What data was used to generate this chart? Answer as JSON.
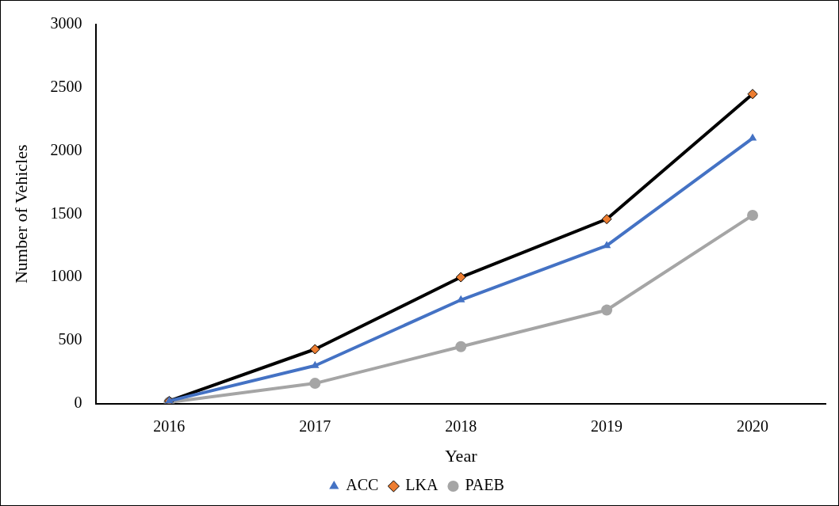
{
  "chart_data": {
    "type": "line",
    "xlabel": "Year",
    "ylabel": "Number of Vehicles",
    "categories": [
      "2016",
      "2017",
      "2018",
      "2019",
      "2020"
    ],
    "series": [
      {
        "name": "ACC",
        "color": "#4472c4",
        "marker": "triangle",
        "values": [
          20,
          300,
          820,
          1250,
          2100
        ]
      },
      {
        "name": "LKA",
        "color": "#000000",
        "marker": "diamond",
        "colors": [
          "#ed7d31",
          "#ed7d31",
          "#ed7d31",
          "#ed7d31",
          "#ed7d31"
        ],
        "values": [
          20,
          430,
          1000,
          1460,
          2450
        ]
      },
      {
        "name": "PAEB",
        "color": "#a5a5a5",
        "marker": "circle",
        "values": [
          10,
          160,
          450,
          740,
          1490
        ]
      }
    ],
    "ylim": [
      0,
      3000
    ],
    "yticks": [
      0,
      500,
      1000,
      1500,
      2000,
      2500,
      3000
    ],
    "grid": false,
    "legend": "bottom",
    "line_style": "solid"
  }
}
